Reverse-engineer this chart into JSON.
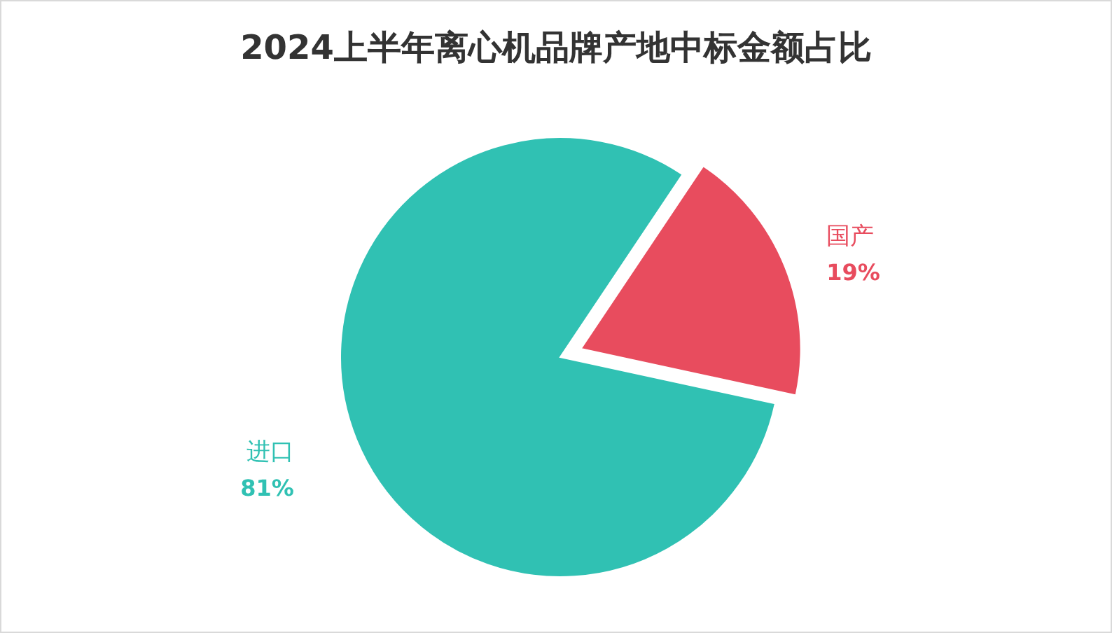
{
  "chart_data": {
    "type": "pie",
    "title": "2024上半年离心机品牌产地中标金额占比",
    "categories": [
      "国产",
      "进口"
    ],
    "values": [
      19,
      81
    ],
    "colors": [
      "#e84c5e",
      "#30c1b3"
    ],
    "value_labels": [
      "19%",
      "81%"
    ],
    "legend": false
  }
}
